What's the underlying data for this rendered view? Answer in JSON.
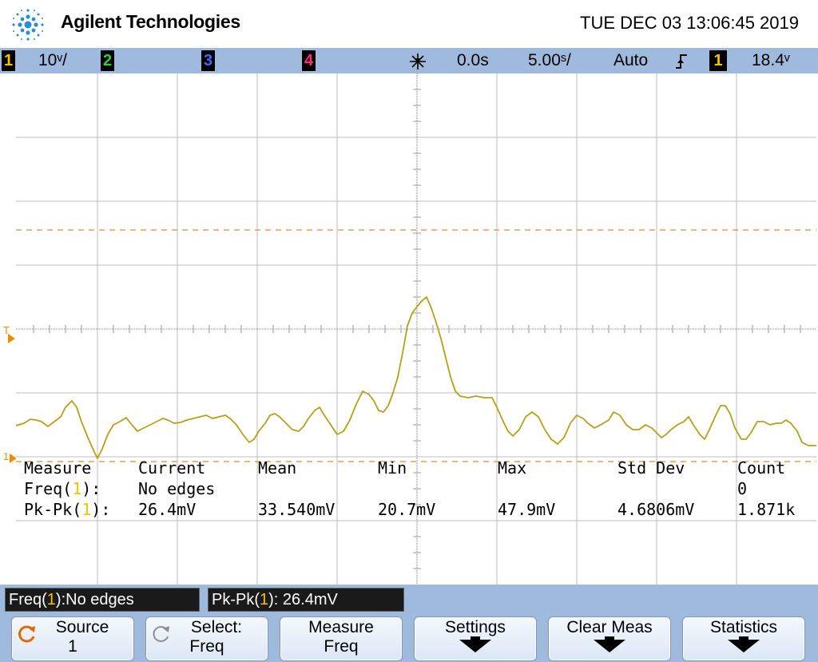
{
  "header": {
    "brand": "Agilent Technologies",
    "datetime": "TUE DEC 03 13:06:45 2019"
  },
  "status": {
    "ch1_num": "1",
    "ch1_scale": "10ᵛ/",
    "ch2_num": "2",
    "ch3_num": "3",
    "ch4_num": "4",
    "delay": "0.0s",
    "timebase": "5.00ˢ/",
    "trigger_mode": "Auto",
    "trigger_edge_icon": "rising-edge-icon",
    "trigger_source": "1",
    "trigger_level": "18.4ᵛ"
  },
  "markers": {
    "trigger": "T",
    "ground": "1"
  },
  "measurements": {
    "headers": [
      "Measure",
      "Current",
      "Mean",
      "Min",
      "Max",
      "Std Dev",
      "Count"
    ],
    "rows": [
      {
        "name": "Freq(",
        "ch": "1",
        "suffix": "):",
        "current": "No edges",
        "mean": "",
        "min": "",
        "max": "",
        "std": "",
        "count": "0"
      },
      {
        "name": "Pk-Pk(",
        "ch": "1",
        "suffix": "):",
        "current": "26.4mV",
        "mean": "33.540mV",
        "min": "20.7mV",
        "max": "47.9mV",
        "std": "4.6806mV",
        "count": "1.871k"
      }
    ]
  },
  "readouts": {
    "freq_prefix": "Freq(",
    "freq_ch": "1",
    "freq_suffix": "):No edges",
    "pkpk_prefix": "Pk-Pk(",
    "pkpk_ch": "1",
    "pkpk_suffix": "): 26.4mV"
  },
  "softkeys": {
    "source_l1": "Source",
    "source_l2": "1",
    "select_l1": "Select:",
    "select_l2": "Freq",
    "measure_l1": "Measure",
    "measure_l2": "Freq",
    "settings": "Settings",
    "clear": "Clear Meas",
    "statistics": "Statistics"
  },
  "colors": {
    "ch1": "#f5c400",
    "ch2": "#33cc33",
    "ch3": "#3a6cff",
    "ch4": "#ff2a7a",
    "trace": "#b8a014",
    "trigger_level_line": "#e8a040",
    "trigger_marker": "#f08c00"
  }
}
